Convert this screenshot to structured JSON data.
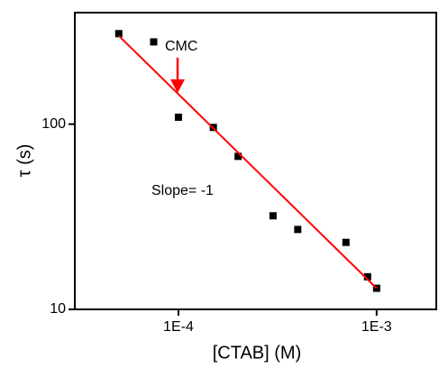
{
  "chart_data": {
    "type": "scatter",
    "xlabel": "[CTAB] (M)",
    "ylabel": "τ (s)",
    "xlog": true,
    "ylog": true,
    "xlim": [
      3e-05,
      0.002
    ],
    "ylim": [
      10,
      400
    ],
    "xticks": [
      {
        "value": 0.0001,
        "label": "1E-4"
      },
      {
        "value": 0.001,
        "label": "1E-3"
      }
    ],
    "yticks": [
      10,
      100
    ],
    "series": [
      {
        "style": "marker",
        "color": "#000000",
        "x": [
          5e-05,
          7.5e-05,
          0.0001,
          0.00015,
          0.0002,
          0.0003,
          0.0004,
          0.0007,
          0.0009,
          0.001
        ],
        "values": [
          308,
          278,
          109,
          96,
          67,
          32,
          27,
          23,
          15,
          13
        ]
      },
      {
        "style": "line",
        "color": "#ff0000",
        "x": [
          5e-05,
          0.001
        ],
        "values": [
          300,
          13
        ]
      }
    ],
    "annotations": [
      {
        "text": "CMC",
        "color": "#000000"
      },
      {
        "text": "Slope= -1",
        "color": "#ff0000"
      }
    ]
  }
}
